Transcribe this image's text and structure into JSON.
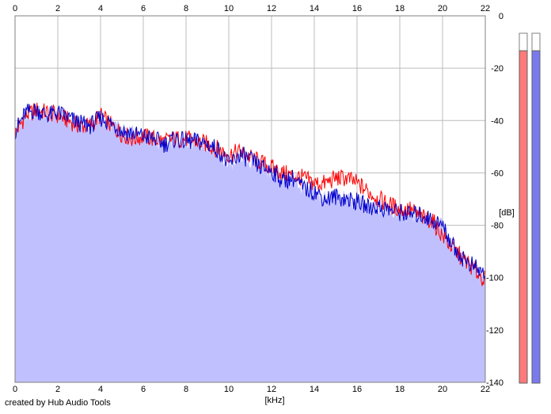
{
  "chart_data": {
    "type": "area",
    "title": "",
    "xlabel": "[kHz]",
    "ylabel": "[dB]",
    "xlim": [
      0,
      22
    ],
    "ylim": [
      -140,
      0
    ],
    "x_ticks": [
      0,
      2,
      4,
      6,
      8,
      10,
      12,
      14,
      16,
      18,
      20,
      22
    ],
    "y_ticks": [
      0,
      -20,
      -40,
      -60,
      -80,
      -100,
      -120,
      -140
    ],
    "y_tick_labels": [
      "0",
      "-20",
      "-40",
      "-60",
      "-80",
      "-100",
      "-120",
      "-140"
    ],
    "grid": true,
    "x_ticks_top": true,
    "background_fill": "#c0c0fe",
    "series": [
      {
        "color": "#ff0000",
        "fill": "#ff9a9a",
        "x": [
          0,
          0.5,
          1,
          1.5,
          2,
          2.5,
          3,
          3.5,
          4,
          4.5,
          5,
          5.5,
          6,
          6.5,
          7,
          7.5,
          8,
          8.5,
          9,
          9.5,
          10,
          10.5,
          11,
          11.5,
          12,
          12.5,
          13,
          13.5,
          14,
          14.5,
          15,
          15.5,
          16,
          16.5,
          17,
          17.5,
          18,
          18.5,
          19,
          19.5,
          20,
          20.5,
          21,
          21.5,
          22
        ],
        "values": [
          -45,
          -38,
          -36,
          -37,
          -38,
          -40,
          -42,
          -42,
          -38,
          -42,
          -45,
          -47,
          -46,
          -47,
          -48,
          -47,
          -47,
          -48,
          -49,
          -51,
          -53,
          -52,
          -54,
          -56,
          -58,
          -60,
          -61,
          -62,
          -64,
          -64,
          -62,
          -62,
          -64,
          -67,
          -70,
          -72,
          -74,
          -74,
          -77,
          -78,
          -84,
          -89,
          -93,
          -97,
          -101
        ]
      },
      {
        "color": "#0000cc",
        "fill": "#8a8aee",
        "x": [
          0,
          0.5,
          1,
          1.5,
          2,
          2.5,
          3,
          3.5,
          4,
          4.5,
          5,
          5.5,
          6,
          6.5,
          7,
          7.5,
          8,
          8.5,
          9,
          9.5,
          10,
          10.5,
          11,
          11.5,
          12,
          12.5,
          13,
          13.5,
          14,
          14.5,
          15,
          15.5,
          16,
          16.5,
          17,
          17.5,
          18,
          18.5,
          19,
          19.5,
          20,
          20.5,
          21,
          21.5,
          22
        ],
        "values": [
          -44,
          -37,
          -36,
          -38,
          -37,
          -39,
          -41,
          -42,
          -39,
          -41,
          -44,
          -45,
          -46,
          -47,
          -49,
          -47,
          -48,
          -48,
          -49,
          -51,
          -57,
          -53,
          -55,
          -58,
          -59,
          -63,
          -62,
          -66,
          -67,
          -70,
          -69,
          -70,
          -71,
          -73,
          -73,
          -74,
          -75,
          -76,
          -76,
          -78,
          -80,
          -88,
          -93,
          -96,
          -99
        ]
      }
    ],
    "level_meters": [
      {
        "color": "#ff7a7a",
        "level": 0.95
      },
      {
        "color": "#7a7aee",
        "level": 0.95
      }
    ]
  },
  "credit": "created by Hub Audio Tools"
}
